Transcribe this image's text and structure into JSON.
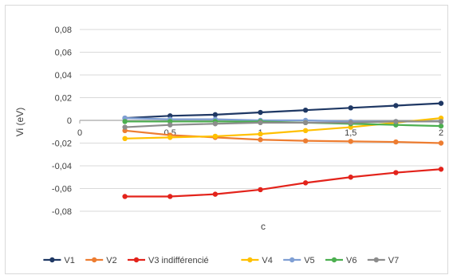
{
  "chart_data": {
    "type": "line",
    "title": "",
    "xlabel": "c",
    "ylabel": "Vi (eV)",
    "ylim": [
      -0.08,
      0.08
    ],
    "xlim": [
      0,
      2
    ],
    "grid": true,
    "legend_position": "bottom",
    "x_ticks": [
      "0",
      "0,5",
      "1",
      "1,5",
      "2"
    ],
    "y_ticks": [
      "0,08",
      "0,06",
      "0,04",
      "0,02",
      "0",
      "-0,02",
      "-0,04",
      "-0,06",
      "-0,08"
    ],
    "x": [
      0.25,
      0.5,
      0.75,
      1.0,
      1.25,
      1.5,
      1.75,
      2.0
    ],
    "series": [
      {
        "name": "V1",
        "color": "#1f3864",
        "values": [
          0.002,
          0.004,
          0.005,
          0.007,
          0.009,
          0.011,
          0.013,
          0.015
        ]
      },
      {
        "name": "V2",
        "color": "#ed7d31",
        "values": [
          -0.009,
          -0.013,
          -0.015,
          -0.017,
          -0.018,
          -0.0185,
          -0.019,
          -0.02
        ]
      },
      {
        "name": "V3 indifférencié",
        "color": "#e3231b",
        "values": [
          -0.067,
          -0.067,
          -0.065,
          -0.061,
          -0.055,
          -0.05,
          -0.046,
          -0.043
        ]
      },
      {
        "name": "V4",
        "color": "#ffc000",
        "values": [
          -0.016,
          -0.015,
          -0.014,
          -0.012,
          -0.009,
          -0.006,
          -0.002,
          0.002
        ]
      },
      {
        "name": "V5",
        "color": "#7f9fd4",
        "values": [
          0.002,
          0.001,
          0.001,
          0.0,
          0.0,
          -0.001,
          -0.001,
          -0.001
        ]
      },
      {
        "name": "V6",
        "color": "#4caf50",
        "values": [
          -0.001,
          -0.001,
          -0.001,
          -0.001,
          -0.002,
          -0.003,
          -0.004,
          -0.005
        ]
      },
      {
        "name": "V7",
        "color": "#8c8c8c",
        "values": [
          -0.006,
          -0.004,
          -0.003,
          -0.002,
          -0.002,
          -0.002,
          -0.001,
          -0.001
        ]
      }
    ]
  }
}
